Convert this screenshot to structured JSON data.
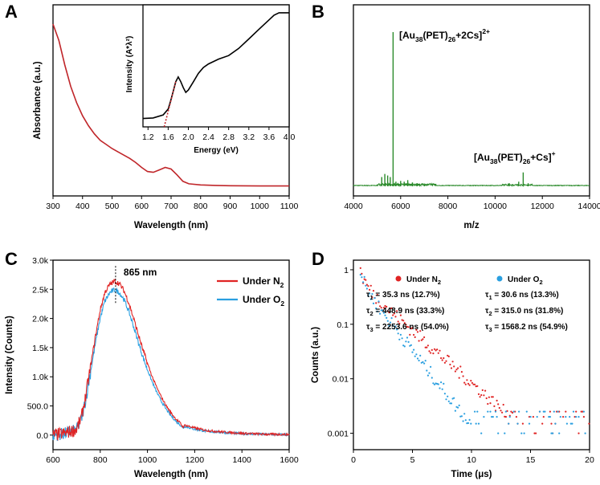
{
  "chart_data": [
    {
      "panel": "A",
      "type": "line",
      "xlabel": "Wavelength (nm)",
      "ylabel": "Absorbance (a.u.)",
      "xlim": [
        300,
        1100
      ],
      "xticks": [
        300,
        400,
        500,
        600,
        700,
        800,
        900,
        1000,
        1100
      ],
      "series": [
        {
          "name": "Absorbance",
          "color": "#c0262a",
          "x": [
            300,
            320,
            340,
            360,
            380,
            400,
            420,
            440,
            460,
            480,
            500,
            520,
            540,
            560,
            580,
            600,
            620,
            640,
            660,
            680,
            700,
            720,
            740,
            760,
            800,
            850,
            900,
            1000,
            1100
          ],
          "y": [
            1.0,
            0.9,
            0.75,
            0.62,
            0.52,
            0.44,
            0.38,
            0.33,
            0.29,
            0.265,
            0.24,
            0.22,
            0.2,
            0.18,
            0.155,
            0.125,
            0.1,
            0.095,
            0.11,
            0.125,
            0.115,
            0.08,
            0.04,
            0.025,
            0.018,
            0.015,
            0.013,
            0.012,
            0.012
          ]
        }
      ],
      "inset": {
        "xlabel": "Energy (eV)",
        "ylabel": "Intensity (A*λ²)",
        "xlim": [
          1.1,
          4.0
        ],
        "xticks": [
          1.2,
          1.6,
          2.0,
          2.4,
          2.8,
          3.2,
          3.6,
          4.0
        ],
        "curve": {
          "color": "#000000",
          "x": [
            1.1,
            1.3,
            1.5,
            1.6,
            1.65,
            1.7,
            1.75,
            1.8,
            1.85,
            1.9,
            1.95,
            2.0,
            2.1,
            2.2,
            2.3,
            2.4,
            2.6,
            2.8,
            3.0,
            3.2,
            3.4,
            3.6,
            3.7,
            3.8,
            4.0
          ],
          "y": [
            0.07,
            0.075,
            0.1,
            0.15,
            0.22,
            0.3,
            0.38,
            0.42,
            0.38,
            0.33,
            0.29,
            0.31,
            0.38,
            0.45,
            0.5,
            0.53,
            0.57,
            0.6,
            0.66,
            0.74,
            0.82,
            0.9,
            0.94,
            0.96,
            0.96
          ]
        },
        "tangent": {
          "color": "#c0262a",
          "style": "dotted",
          "x": [
            1.52,
            1.75
          ],
          "y": [
            0.0,
            0.38
          ]
        }
      }
    },
    {
      "panel": "B",
      "type": "line",
      "xlabel": "m/z",
      "ylabel": "",
      "xlim": [
        4000,
        14000
      ],
      "xticks": [
        4000,
        6000,
        8000,
        10000,
        12000,
        14000
      ],
      "series": [
        {
          "name": "Mass spectrum",
          "color": "#2a8a2a",
          "peaks": [
            [
              5200,
              0.06
            ],
            [
              5330,
              0.08
            ],
            [
              5450,
              0.07
            ],
            [
              5560,
              0.06
            ],
            [
              5680,
              1.0
            ],
            [
              5800,
              0.03
            ],
            [
              6000,
              0.035
            ],
            [
              6150,
              0.03
            ],
            [
              6300,
              0.04
            ],
            [
              6500,
              0.025
            ],
            [
              6700,
              0.02
            ],
            [
              7000,
              0.018
            ],
            [
              10600,
              0.02
            ],
            [
              11000,
              0.03
            ],
            [
              11190,
              0.09
            ],
            [
              11400,
              0.02
            ]
          ]
        }
      ],
      "annotations": [
        {
          "text": "[Au",
          "sub1": "38",
          "mid": "(PET)",
          "sub2": "26",
          "tail": "+2Cs]",
          "sup": "2+",
          "x": 5680
        },
        {
          "text": "[Au",
          "sub1": "38",
          "mid": "(PET)",
          "sub2": "26",
          "tail": "+Cs]",
          "sup": "+",
          "x": 11190
        }
      ]
    },
    {
      "panel": "C",
      "type": "line",
      "xlabel": "Wavelength (nm)",
      "ylabel": "Intensity (Counts)",
      "xlim": [
        600,
        1600
      ],
      "ylim": [
        -250,
        3000
      ],
      "xticks": [
        600,
        800,
        1000,
        1200,
        1400,
        1600
      ],
      "yticks": [
        0,
        500,
        1000,
        1500,
        2000,
        2500,
        3000
      ],
      "ytick_labels": [
        "0.0",
        "500.0",
        "1.0k",
        "1.5k",
        "2.0k",
        "2.5k",
        "3.0k"
      ],
      "peak_label": "865 nm",
      "peak_x": 865,
      "series": [
        {
          "name": "Under N",
          "sub": "2",
          "color": "#e02424",
          "x": [
            600,
            650,
            700,
            720,
            740,
            760,
            780,
            800,
            820,
            840,
            860,
            880,
            900,
            920,
            940,
            960,
            980,
            1000,
            1020,
            1040,
            1060,
            1080,
            1100,
            1120,
            1140,
            1150,
            1160,
            1200,
            1250,
            1300,
            1400,
            1500,
            1600
          ],
          "y": [
            0,
            30,
            100,
            300,
            700,
            1200,
            1700,
            2150,
            2450,
            2580,
            2640,
            2600,
            2480,
            2280,
            2020,
            1740,
            1470,
            1230,
            1000,
            810,
            640,
            500,
            380,
            280,
            200,
            140,
            170,
            120,
            80,
            60,
            30,
            15,
            10
          ]
        },
        {
          "name": "Under O",
          "sub": "2",
          "color": "#2a9fe0",
          "x": [
            600,
            650,
            700,
            720,
            740,
            760,
            780,
            800,
            820,
            840,
            860,
            880,
            900,
            920,
            940,
            960,
            980,
            1000,
            1020,
            1040,
            1060,
            1080,
            1100,
            1120,
            1140,
            1150,
            1160,
            1200,
            1250,
            1300,
            1400,
            1500,
            1600
          ],
          "y": [
            0,
            25,
            90,
            270,
            640,
            1110,
            1580,
            2010,
            2300,
            2440,
            2490,
            2450,
            2330,
            2130,
            1880,
            1610,
            1350,
            1120,
            910,
            730,
            570,
            440,
            330,
            240,
            170,
            120,
            150,
            100,
            65,
            50,
            25,
            12,
            8
          ]
        }
      ]
    },
    {
      "panel": "D",
      "type": "scatter",
      "xlabel": "Time (μs)",
      "ylabel": "Counts (a.u.)",
      "xlim": [
        0,
        20
      ],
      "ylim": [
        0.0005,
        1.5
      ],
      "yscale": "log",
      "xticks": [
        0,
        5,
        10,
        15,
        20
      ],
      "yticks": [
        0.001,
        0.01,
        0.1,
        1
      ],
      "ytick_labels": [
        "0.001",
        "0.01",
        "0.1",
        "1"
      ],
      "series": [
        {
          "name": "Under N",
          "sub": "2",
          "color": "#e02424",
          "fit": [
            {
              "tau": "τ",
              "i": "1",
              "text": " = 35.3 ns (12.7%)"
            },
            {
              "tau": "τ",
              "i": "2",
              "text": " = 448.9 ns (33.3%)"
            },
            {
              "tau": "τ",
              "i": "3",
              "text": " = 2253.6 ns (54.0%)"
            }
          ],
          "decay": {
            "a": [
              0.127,
              0.333,
              0.54
            ],
            "tau_us": [
              0.0353,
              0.4489,
              2.2536
            ],
            "t0": 0.6,
            "floor": 0.002
          }
        },
        {
          "name": "Under O",
          "sub": "2",
          "color": "#2a9fe0",
          "fit": [
            {
              "tau": "τ",
              "i": "1",
              "text": " = 30.6 ns (13.3%)"
            },
            {
              "tau": "τ",
              "i": "2",
              "text": " = 315.0 ns (31.8%)"
            },
            {
              "tau": "τ",
              "i": "3",
              "text": " = 1568.2 ns (54.9%)"
            }
          ],
          "decay": {
            "a": [
              0.133,
              0.318,
              0.549
            ],
            "tau_us": [
              0.0306,
              0.315,
              1.5682
            ],
            "t0": 0.6,
            "floor": 0.0015
          }
        }
      ]
    }
  ]
}
